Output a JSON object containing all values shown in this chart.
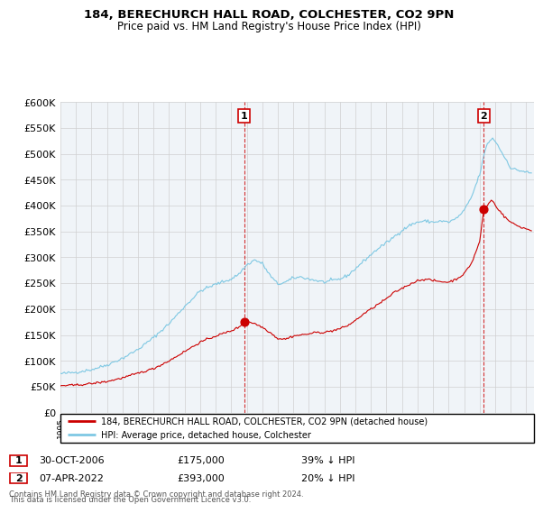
{
  "title_line1": "184, BERECHURCH HALL ROAD, COLCHESTER, CO2 9PN",
  "title_line2": "Price paid vs. HM Land Registry's House Price Index (HPI)",
  "legend_label1": "184, BERECHURCH HALL ROAD, COLCHESTER, CO2 9PN (detached house)",
  "legend_label2": "HPI: Average price, detached house, Colchester",
  "annotation1_date": "30-OCT-2006",
  "annotation1_price": "£175,000",
  "annotation1_hpi": "39% ↓ HPI",
  "annotation1_year": 2006.83,
  "annotation1_value": 175000,
  "annotation2_date": "07-APR-2022",
  "annotation2_price": "£393,000",
  "annotation2_hpi": "20% ↓ HPI",
  "annotation2_year": 2022.27,
  "annotation2_value": 393000,
  "footer_line1": "Contains HM Land Registry data © Crown copyright and database right 2024.",
  "footer_line2": "This data is licensed under the Open Government Licence v3.0.",
  "hpi_color": "#7ec8e3",
  "price_color": "#cc0000",
  "ylim_min": 0,
  "ylim_max": 600000,
  "xlim_min": 1995.0,
  "xlim_max": 2025.5
}
